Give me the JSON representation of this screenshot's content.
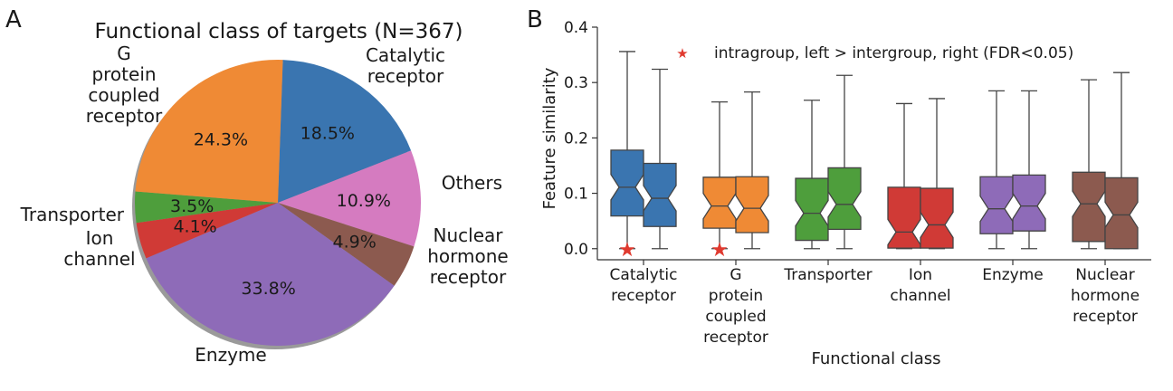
{
  "panel_a": {
    "letter": "A",
    "chart_data": {
      "type": "pie",
      "title": "Functional class of targets (N=367)",
      "slices": [
        {
          "label": "Catalytic\nreceptor",
          "value": 18.5,
          "pct_label": "18.5%",
          "color": "#3a75b0"
        },
        {
          "label": "Others",
          "value": 10.9,
          "pct_label": "10.9%",
          "color": "#d57bc0"
        },
        {
          "label": "Nuclear\nhormone\nreceptor",
          "value": 4.9,
          "pct_label": "4.9%",
          "color": "#8c5a4f"
        },
        {
          "label": "Enzyme",
          "value": 33.8,
          "pct_label": "33.8%",
          "color": "#8e6bb8"
        },
        {
          "label": "Ion\nchannel",
          "value": 4.1,
          "pct_label": "4.1%",
          "color": "#d03a36"
        },
        {
          "label": "Transporter",
          "value": 3.5,
          "pct_label": "3.5%",
          "color": "#4e9e3c"
        },
        {
          "label": "G\nprotein\ncoupled\nreceptor",
          "value": 24.3,
          "pct_label": "24.3%",
          "color": "#ef8a35"
        }
      ]
    }
  },
  "panel_b": {
    "letter": "B",
    "chart_data": {
      "type": "box",
      "xlabel": "Functional class",
      "ylabel": "Feature similarity",
      "ylim": [
        -0.02,
        0.4
      ],
      "yticks": [
        "0.0",
        "0.1",
        "0.2",
        "0.3",
        "0.4"
      ],
      "legend": {
        "marker": "★",
        "text": "intragroup, left > intergroup, right (FDR<0.05)",
        "color": "#e03a2f",
        "placement": "top"
      },
      "groups": [
        {
          "label": "Catalytic\nreceptor",
          "color": "#3a75b0",
          "significant": true,
          "boxes": [
            {
              "side": "intragroup",
              "whislo": 0.0,
              "q1": 0.059,
              "med": 0.111,
              "q3": 0.178,
              "whishi": 0.356
            },
            {
              "side": "intergroup",
              "whislo": 0.0,
              "q1": 0.04,
              "med": 0.091,
              "q3": 0.154,
              "whishi": 0.324
            }
          ]
        },
        {
          "label": "G\nprotein\ncoupled\nreceptor",
          "color": "#ef8a35",
          "significant": true,
          "boxes": [
            {
              "side": "intragroup",
              "whislo": 0.0,
              "q1": 0.037,
              "med": 0.077,
              "q3": 0.129,
              "whishi": 0.265
            },
            {
              "side": "intergroup",
              "whislo": 0.0,
              "q1": 0.029,
              "med": 0.073,
              "q3": 0.13,
              "whishi": 0.283
            }
          ]
        },
        {
          "label": "Transporter",
          "color": "#4e9e3c",
          "significant": false,
          "boxes": [
            {
              "side": "intragroup",
              "whislo": 0.0,
              "q1": 0.015,
              "med": 0.064,
              "q3": 0.127,
              "whishi": 0.268
            },
            {
              "side": "intergroup",
              "whislo": 0.0,
              "q1": 0.035,
              "med": 0.08,
              "q3": 0.146,
              "whishi": 0.313
            }
          ]
        },
        {
          "label": "Ion\nchannel",
          "color": "#d03a36",
          "significant": false,
          "boxes": [
            {
              "side": "intragroup",
              "whislo": 0.0,
              "q1": 0.001,
              "med": 0.03,
              "q3": 0.111,
              "whishi": 0.262
            },
            {
              "side": "intergroup",
              "whislo": 0.0,
              "q1": 0.001,
              "med": 0.043,
              "q3": 0.109,
              "whishi": 0.271
            }
          ]
        },
        {
          "label": "Enzyme",
          "color": "#8e6bb8",
          "significant": false,
          "boxes": [
            {
              "side": "intragroup",
              "whislo": 0.0,
              "q1": 0.027,
              "med": 0.072,
              "q3": 0.13,
              "whishi": 0.285
            },
            {
              "side": "intergroup",
              "whislo": 0.0,
              "q1": 0.032,
              "med": 0.077,
              "q3": 0.133,
              "whishi": 0.285
            }
          ]
        },
        {
          "label": "Nuclear\nhormone\nreceptor",
          "color": "#8c5a4f",
          "significant": false,
          "boxes": [
            {
              "side": "intragroup",
              "whislo": 0.0,
              "q1": 0.013,
              "med": 0.081,
              "q3": 0.138,
              "whishi": 0.305
            },
            {
              "side": "intergroup",
              "whislo": 0.0,
              "q1": 0.0,
              "med": 0.061,
              "q3": 0.128,
              "whishi": 0.318
            }
          ]
        }
      ]
    }
  }
}
